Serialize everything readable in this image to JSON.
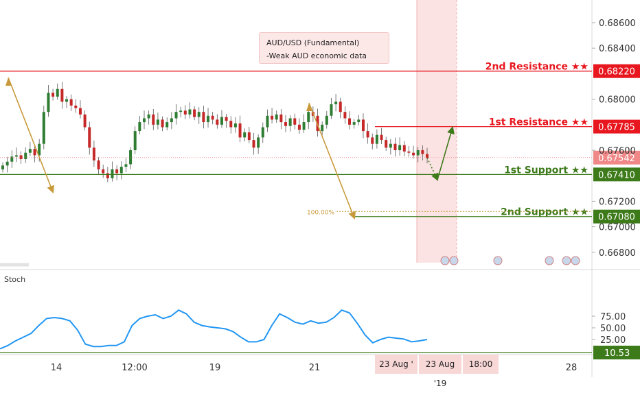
{
  "chart_data": {
    "type": "candlestick",
    "symbol": "AUD/USD",
    "callout": {
      "title": "AUD/USD (Fundamental)",
      "body": "-Weak AUD economic data"
    },
    "levels": [
      {
        "name": "2nd Resistance ★★",
        "value": "0.68220",
        "y": 0.6822,
        "color": "#e8171f",
        "kind": "resistance"
      },
      {
        "name": "1st Resistance ★★",
        "value": "0.67785",
        "y": 0.67785,
        "color": "#e8171f",
        "kind": "resistance"
      },
      {
        "name": "1st Support ★★",
        "value": "0.67410",
        "y": 0.6741,
        "color": "#3d7a1a",
        "kind": "support"
      },
      {
        "name": "2nd Support ★★",
        "value": "0.67080",
        "y": 0.6708,
        "color": "#3d7a1a",
        "kind": "support"
      }
    ],
    "current_price": {
      "value": "0.67542",
      "y": 0.67542,
      "color": "#f08888"
    },
    "fib_label": "100.00%",
    "price_axis": {
      "ticks": [
        "0.68600",
        "0.68400",
        "0.68000",
        "0.67600",
        "0.67200",
        "0.67000",
        "0.66800"
      ],
      "range": [
        0.6674,
        0.6878
      ]
    },
    "x_axis": {
      "labels": [
        "14",
        "12:00",
        "19",
        "21",
        "28"
      ]
    },
    "time_range_labels": [
      "23 Aug '",
      "23 Aug '19",
      "18:00"
    ],
    "price_series": [
      0.6748,
      0.6751,
      0.6755,
      0.6756,
      0.6753,
      0.6758,
      0.6761,
      0.6756,
      0.6765,
      0.679,
      0.6805,
      0.6802,
      0.6808,
      0.6798,
      0.68,
      0.6795,
      0.6793,
      0.6788,
      0.6778,
      0.6762,
      0.6752,
      0.6745,
      0.6742,
      0.6738,
      0.6745,
      0.6742,
      0.6747,
      0.6749,
      0.676,
      0.6775,
      0.6782,
      0.6785,
      0.6788,
      0.678,
      0.6784,
      0.6778,
      0.6782,
      0.6785,
      0.679,
      0.6791,
      0.6788,
      0.6792,
      0.6786,
      0.679,
      0.6782,
      0.6787,
      0.6784,
      0.678,
      0.6786,
      0.6783,
      0.6778,
      0.6781,
      0.677,
      0.6774,
      0.6768,
      0.6762,
      0.677,
      0.6778,
      0.6787,
      0.6784,
      0.6788,
      0.6782,
      0.6779,
      0.6785,
      0.678,
      0.6776,
      0.6782,
      0.679,
      0.6787,
      0.6775,
      0.678,
      0.6787,
      0.6796,
      0.6798,
      0.679,
      0.6785,
      0.678,
      0.6782,
      0.6784,
      0.6775,
      0.677,
      0.6765,
      0.6772,
      0.6768,
      0.6762,
      0.6765,
      0.676,
      0.6764,
      0.6759,
      0.6758,
      0.6756,
      0.676,
      0.6757,
      0.6754
    ],
    "stoch": {
      "label": "Stoch",
      "ticks": [
        "75.00",
        "50.00",
        "25.00"
      ],
      "range": [
        0,
        100
      ],
      "current": "10.53",
      "values": [
        5,
        12,
        22,
        30,
        38,
        55,
        70,
        72,
        70,
        65,
        45,
        15,
        10,
        10,
        12,
        12,
        20,
        55,
        70,
        75,
        78,
        70,
        75,
        88,
        80,
        62,
        55,
        52,
        50,
        48,
        42,
        30,
        20,
        20,
        25,
        55,
        80,
        72,
        62,
        58,
        65,
        60,
        62,
        72,
        88,
        82,
        60,
        35,
        18,
        25,
        30,
        28,
        26,
        20,
        22,
        25
      ]
    }
  }
}
